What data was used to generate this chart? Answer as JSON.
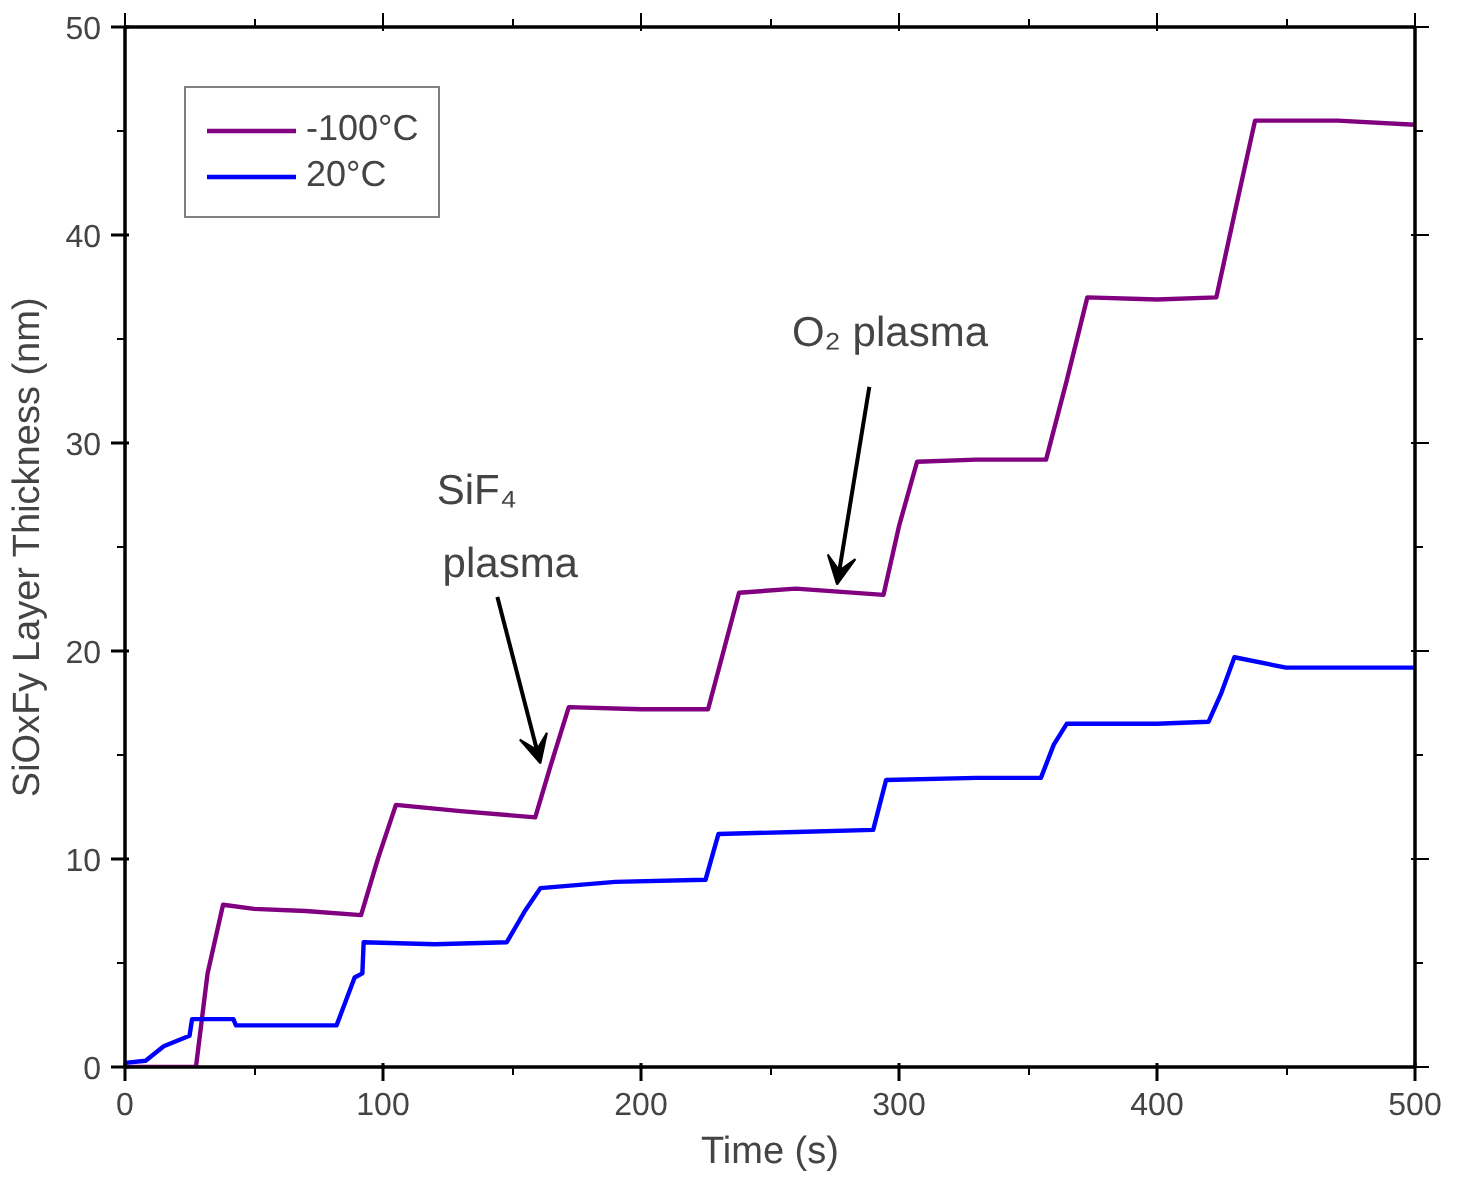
{
  "chart_data": {
    "type": "line",
    "xlabel": "Time (s)",
    "ylabel": "SiOxFy Layer Thickness (nm)",
    "xlim": [
      0,
      500
    ],
    "ylim": [
      0,
      50
    ],
    "xticks": [
      0,
      100,
      200,
      300,
      400,
      500
    ],
    "yticks": [
      0,
      10,
      20,
      30,
      40,
      50
    ],
    "grid": false,
    "legend": "top left",
    "marker": "none",
    "line_style": "solid",
    "series": [
      {
        "name": "-100°C",
        "color": "#800080",
        "x": [
          0,
          27.5,
          32,
          38,
          50,
          70,
          91.5,
          98,
          105,
          130,
          159,
          165,
          172,
          200,
          226,
          232,
          238,
          260,
          294,
          300,
          307,
          330,
          357,
          365,
          373,
          400,
          423,
          430,
          438,
          470,
          500
        ],
        "values": [
          0,
          0,
          4.5,
          7.8,
          7.6,
          7.5,
          7.3,
          10,
          12.6,
          12.3,
          12.0,
          14.5,
          17.3,
          17.2,
          17.2,
          20,
          22.8,
          23.0,
          22.7,
          26,
          29.1,
          29.2,
          29.2,
          33,
          37.0,
          36.9,
          37.0,
          41,
          45.5,
          45.5,
          45.3
        ]
      },
      {
        "name": "20°C",
        "color": "#0000ff",
        "x": [
          0,
          8,
          15,
          25,
          26,
          42,
          43,
          60,
          82,
          89,
          92,
          92.5,
          120,
          148,
          155,
          161,
          190,
          225,
          230,
          260,
          290,
          295,
          330,
          355,
          360,
          365,
          400,
          420,
          425,
          430,
          450,
          500
        ],
        "values": [
          0.2,
          0.3,
          1.0,
          1.5,
          2.3,
          2.3,
          2.0,
          2.0,
          2.0,
          4.3,
          4.5,
          6.0,
          5.9,
          6.0,
          7.5,
          8.6,
          8.9,
          9.0,
          11.2,
          11.3,
          11.4,
          13.8,
          13.9,
          13.9,
          15.5,
          16.5,
          16.5,
          16.6,
          18,
          19.7,
          19.2,
          19.2
        ]
      }
    ],
    "annotations": [
      {
        "text": "SiF₄ plasma",
        "x": 161,
        "y": 14.6
      },
      {
        "text": "O₂ plasma",
        "x": 276,
        "y": 23.2
      }
    ]
  }
}
